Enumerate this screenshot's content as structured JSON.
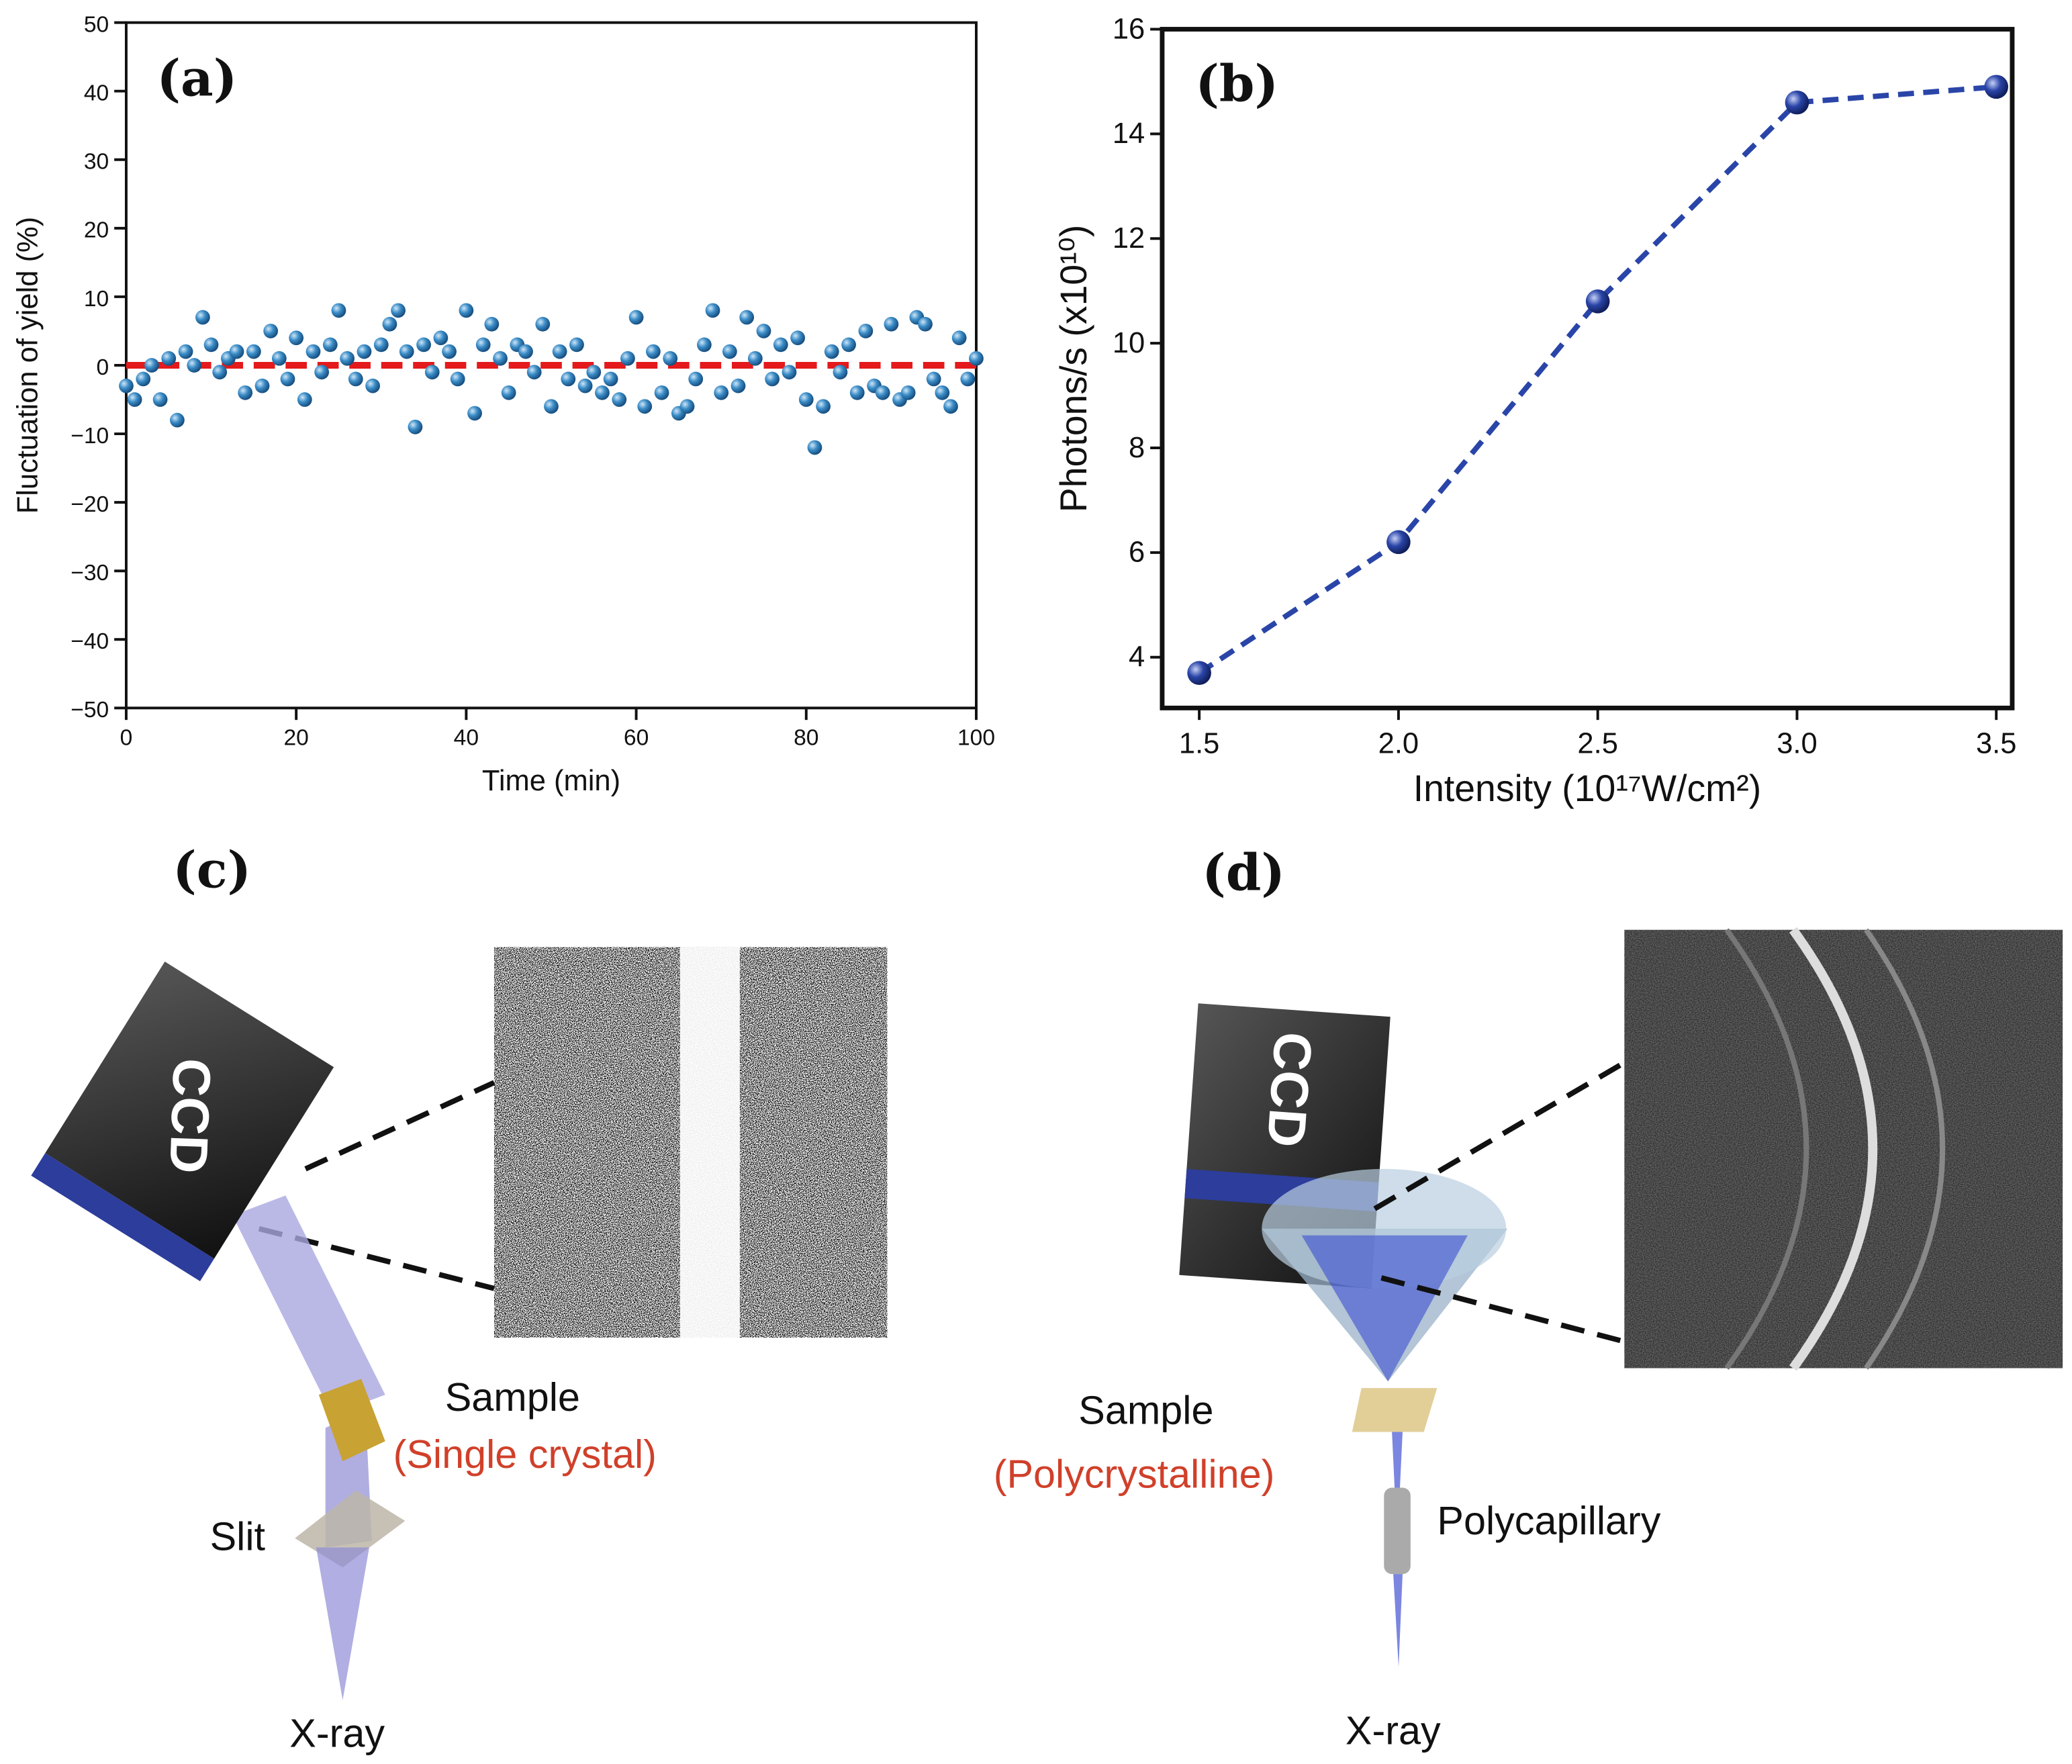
{
  "chart_data": [
    {
      "type": "scatter",
      "panel_label": "(a)",
      "xlabel": "Time (min)",
      "ylabel": "Fluctuation of yield (%)",
      "x": [
        0,
        1,
        2,
        3,
        4,
        5,
        6,
        7,
        8,
        9,
        10,
        11,
        12,
        13,
        14,
        15,
        16,
        17,
        18,
        19,
        20,
        21,
        22,
        23,
        24,
        25,
        26,
        27,
        28,
        29,
        30,
        31,
        32,
        33,
        34,
        35,
        36,
        37,
        38,
        39,
        40,
        41,
        42,
        43,
        44,
        45,
        46,
        47,
        48,
        49,
        50,
        51,
        52,
        53,
        54,
        55,
        56,
        57,
        58,
        59,
        60,
        61,
        62,
        63,
        64,
        65,
        66,
        67,
        68,
        69,
        70,
        71,
        72,
        73,
        74,
        75,
        76,
        77,
        78,
        79,
        80,
        81,
        82,
        83,
        84,
        85,
        86,
        87,
        88,
        89,
        90,
        91,
        92,
        93,
        94,
        95,
        96,
        97,
        98,
        99,
        100
      ],
      "values": [
        -3,
        -5,
        -2,
        0,
        -5,
        1,
        -8,
        2,
        0,
        7,
        3,
        -1,
        1,
        2,
        -4,
        2,
        -3,
        5,
        1,
        -2,
        4,
        -5,
        2,
        -1,
        3,
        8,
        1,
        -2,
        2,
        -3,
        3,
        6,
        8,
        2,
        -9,
        3,
        -1,
        4,
        2,
        -2,
        8,
        -7,
        3,
        6,
        1,
        -4,
        3,
        2,
        -1,
        6,
        -6,
        2,
        -2,
        3,
        -3,
        -1,
        -4,
        -2,
        -5,
        1,
        7,
        -6,
        2,
        -4,
        1,
        -7,
        -6,
        -2,
        3,
        8,
        -4,
        2,
        -3,
        7,
        1,
        5,
        -2,
        3,
        -1,
        4,
        -5,
        -12,
        -6,
        2,
        -1,
        3,
        -4,
        5,
        -3,
        -4,
        6,
        -5,
        -4,
        7,
        6,
        -2,
        -4,
        -6,
        4,
        -2,
        1
      ],
      "color": "#2f7fb8",
      "reference_line": {
        "value": 0,
        "color": "#e41a1c"
      },
      "xlim": [
        0,
        100
      ],
      "xticks": [
        0,
        20,
        40,
        60,
        80,
        100
      ],
      "ylim": [
        -50,
        50
      ],
      "yticks": [
        {
          "value": -50,
          "label": "−50"
        },
        {
          "value": -40,
          "label": "−40"
        },
        {
          "value": -30,
          "label": "−30"
        },
        {
          "value": -20,
          "label": "−20"
        },
        {
          "value": -10,
          "label": "−10"
        },
        0,
        10,
        20,
        30,
        40,
        50
      ]
    },
    {
      "type": "line",
      "panel_label": "(b)",
      "xlabel": "Intensity (10¹⁷W/cm²)",
      "ylabel": "Photons/s (x10¹⁰)",
      "x": [
        1.5,
        2.0,
        2.5,
        3.0,
        3.5
      ],
      "values": [
        3.7,
        6.2,
        10.8,
        14.6,
        14.9
      ],
      "color": "#2a45a8",
      "xlim": [
        1.407,
        3.54
      ],
      "xticks": [
        1.5,
        {
          "value": 2,
          "label": "2.0"
        },
        2.5,
        {
          "value": 3,
          "label": "3.0"
        },
        3.5
      ],
      "ylim": [
        3.03,
        16
      ],
      "yticks": [
        4,
        6,
        8,
        10,
        12,
        14,
        16
      ]
    }
  ],
  "diagrams": [
    {
      "label": "(c)",
      "detector": "CCD",
      "sample": "Sample",
      "sample_type": "(Single crystal)",
      "optic": "Slit",
      "source": "X-ray"
    },
    {
      "label": "(d)",
      "detector": "CCD",
      "sample": "Sample",
      "sample_type": "(Polycrystalline)",
      "optic": "Polycapillary",
      "source": "X-ray"
    }
  ]
}
